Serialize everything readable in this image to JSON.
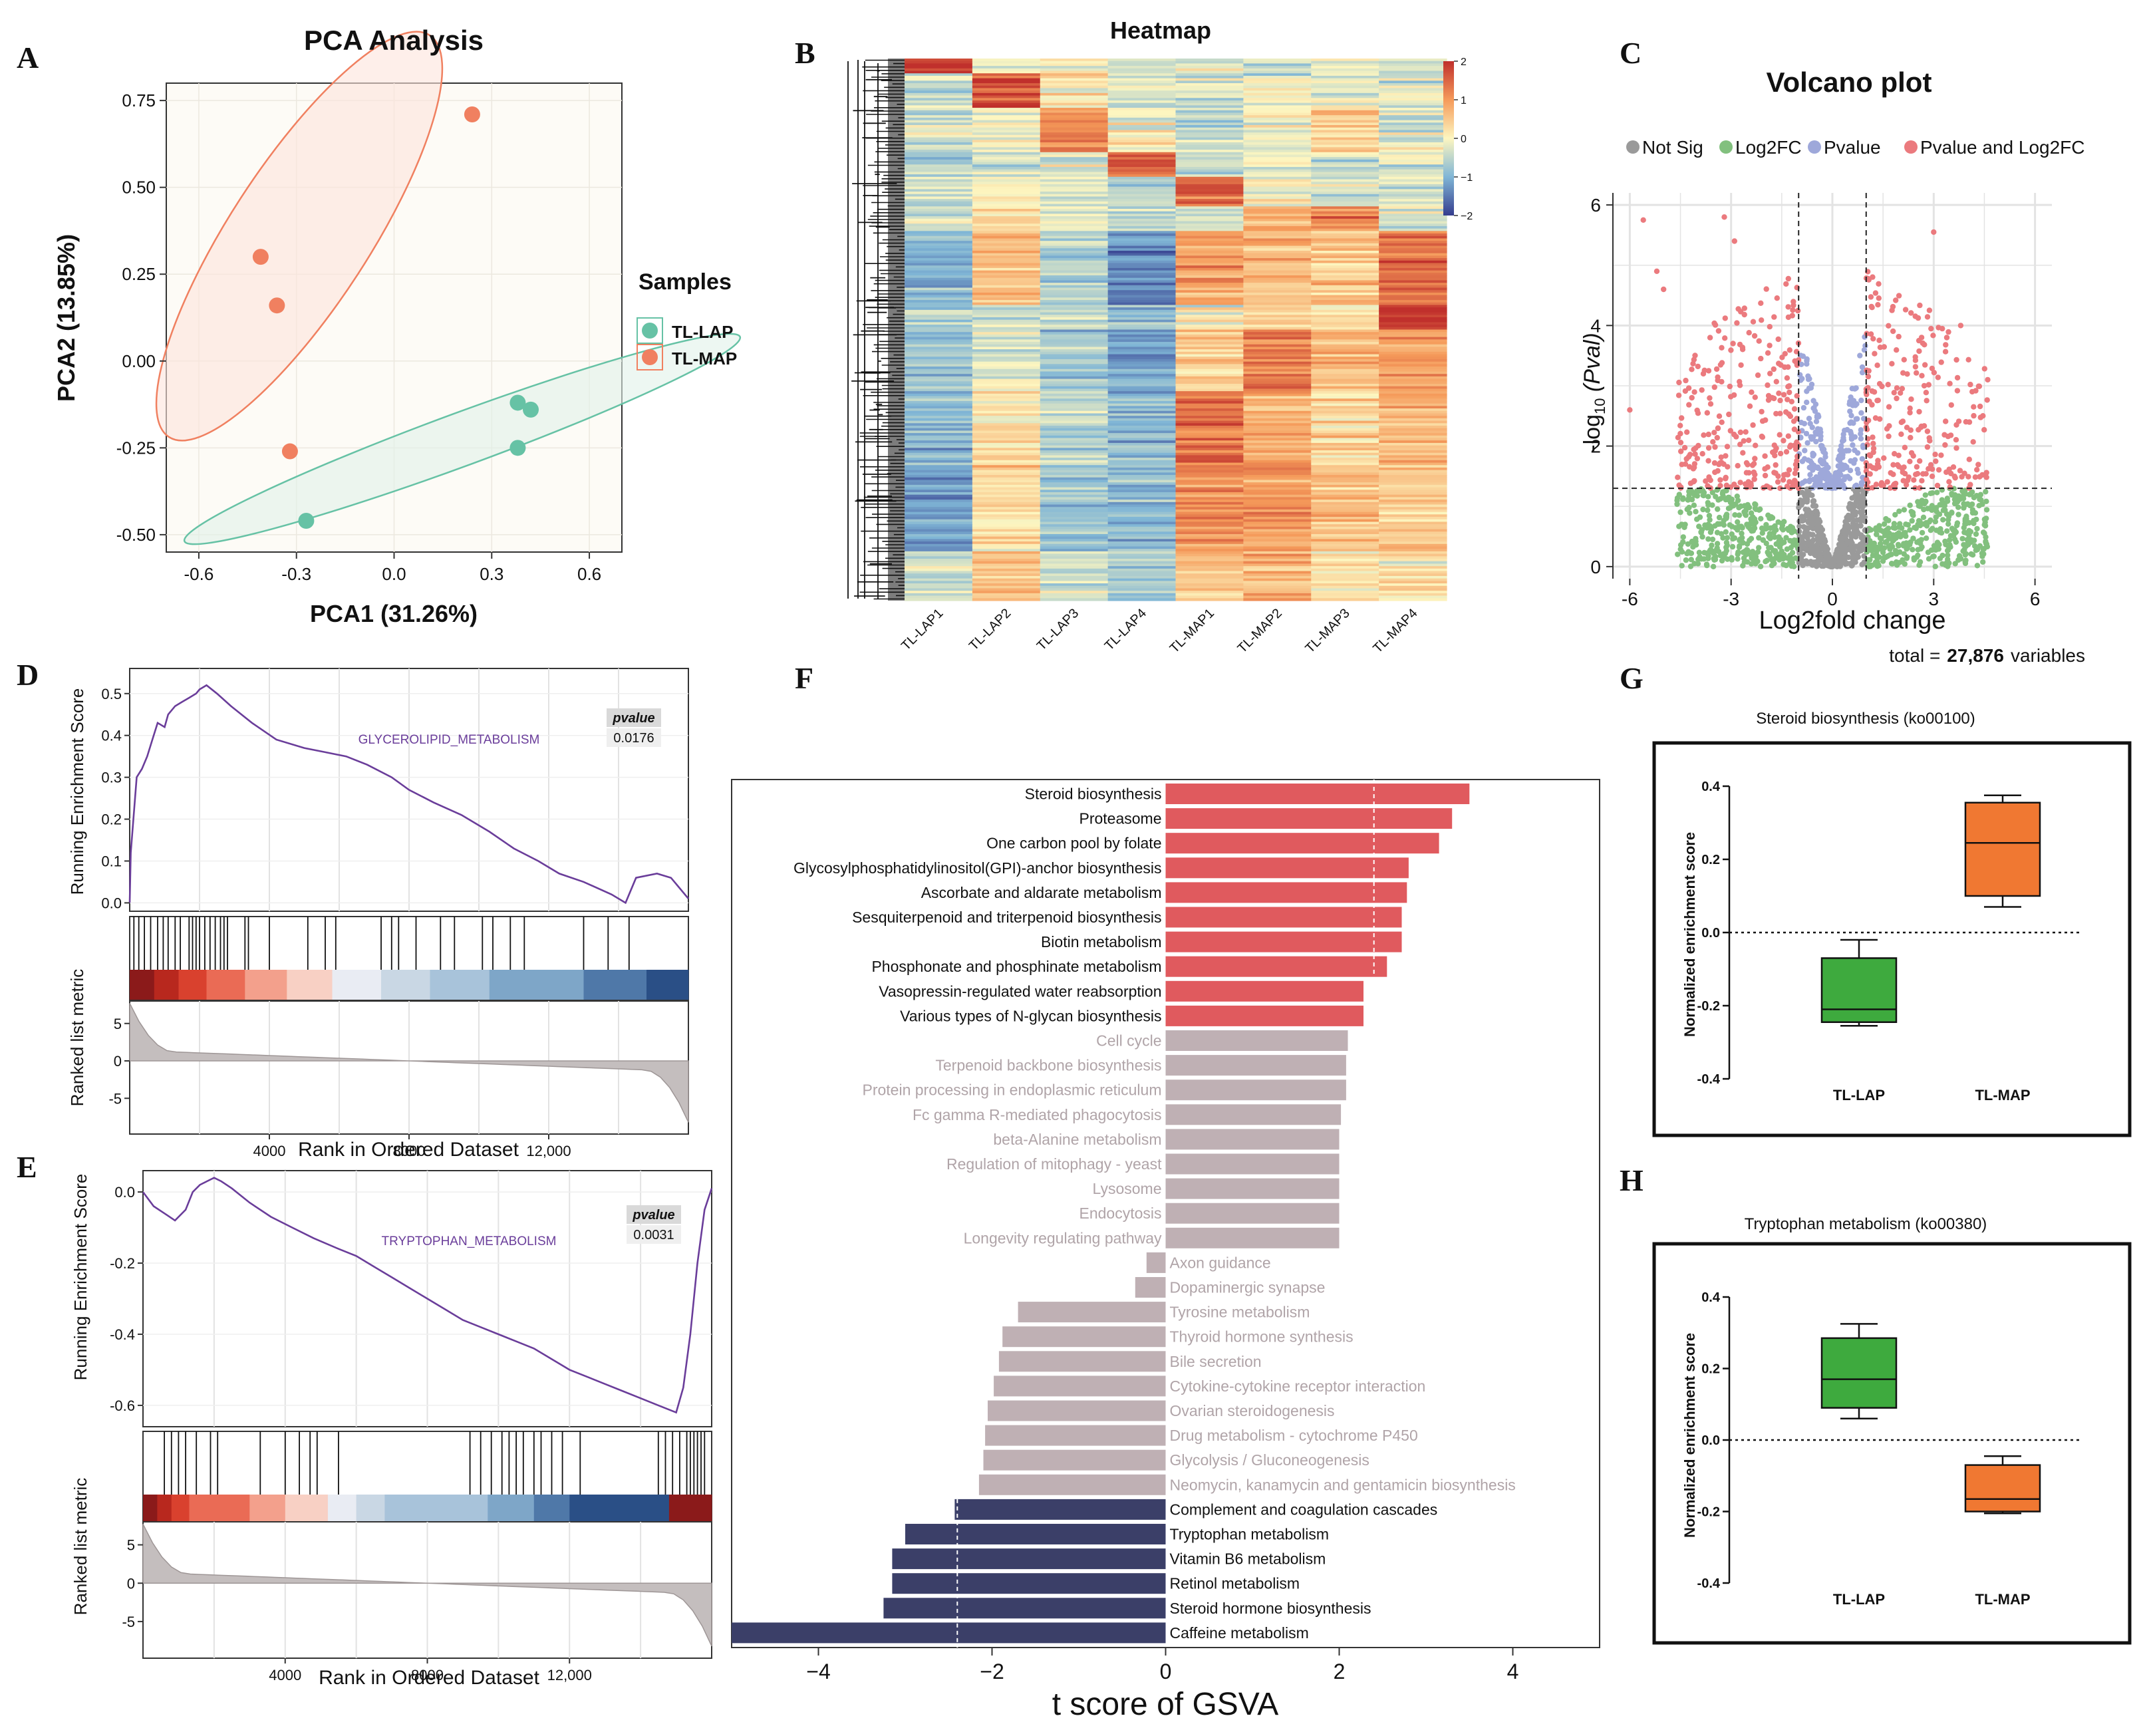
{
  "panel_labels": {
    "a": "A",
    "b": "B",
    "c": "C",
    "d": "D",
    "e": "E",
    "f": "F",
    "g": "G",
    "h": "H"
  },
  "colors": {
    "lap": "#66c2a5",
    "map": "#f08060",
    "up": "#e05a5e",
    "neutral": "#bfb0b4",
    "down": "#3b3f68",
    "box_lap": "#3eaa3e",
    "box_map": "#f07832",
    "gsea_line": "#6a3d9a",
    "notsig": "#9a9a9a",
    "log2fc": "#82c07e",
    "pvalue": "#9ea8da",
    "both": "#eb7a7e"
  },
  "chart_data": [
    {
      "id": "pca",
      "type": "scatter",
      "title": "PCA Analysis",
      "xlabel": "PCA1 (31.26%)",
      "ylabel": "PCA2 (13.85%)",
      "xlim": [
        -0.7,
        0.7
      ],
      "ylim": [
        -0.55,
        0.8
      ],
      "xticks": [
        -0.6,
        -0.3,
        0.0,
        0.3,
        0.6
      ],
      "xtick_labels": [
        "-0.6",
        "-0.3",
        "0.0",
        "0.3",
        "0.6"
      ],
      "yticks": [
        -0.5,
        -0.25,
        0.0,
        0.25,
        0.5,
        0.75
      ],
      "ytick_labels": [
        "-0.50",
        "-0.25",
        "0.00",
        "0.25",
        "0.50",
        "0.75"
      ],
      "legend_title": "Samples",
      "series": [
        {
          "name": "TL-LAP",
          "x": [
            -0.27,
            0.38,
            0.42,
            0.38
          ],
          "y": [
            -0.46,
            -0.12,
            -0.14,
            -0.25
          ]
        },
        {
          "name": "TL-MAP",
          "x": [
            0.24,
            -0.41,
            -0.36,
            -0.32
          ],
          "y": [
            0.71,
            0.3,
            0.16,
            -0.26
          ]
        }
      ]
    },
    {
      "id": "heatmap",
      "type": "heatmap",
      "title": "Heatmap",
      "columns": [
        "TL-LAP1",
        "TL-LAP2",
        "TL-LAP3",
        "TL-LAP4",
        "TL-MAP1",
        "TL-MAP2",
        "TL-MAP3",
        "TL-MAP4"
      ],
      "color_ticks": [
        2,
        1,
        0,
        -1,
        -2
      ],
      "color_tick_labels": [
        "2",
        "1",
        "0",
        "−1",
        "−2"
      ]
    },
    {
      "id": "volcano",
      "type": "scatter",
      "title": "Volcano plot",
      "xlabel": "Log2fold change",
      "ylabel_prefix": "-log",
      "ylabel_sub": "10",
      "ylabel_suffix": " (Pval)",
      "xlim": [
        -6.5,
        6.5
      ],
      "ylim": [
        -0.2,
        6.2
      ],
      "xticks": [
        -6,
        -3,
        0,
        3,
        6
      ],
      "xtick_labels": [
        "-6",
        "-3",
        "0",
        "3",
        "6"
      ],
      "yticks": [
        0,
        2,
        4,
        6
      ],
      "ytick_labels": [
        "0",
        "2",
        "4",
        "6"
      ],
      "fc_cutoff": 1,
      "p_cutoff": 1.3,
      "legend": [
        "Not Sig",
        "Log2FC",
        "Pvalue",
        "Pvalue and Log2FC"
      ],
      "total_prefix": "total =",
      "total_value": "27,876",
      "total_suffix": "variables"
    },
    {
      "id": "gsea_d",
      "type": "line",
      "title": "GLYCEROLIPID_METABOLISM",
      "ylabel": "Running Enrichment Score",
      "ylabel2": "Ranked list metric",
      "xlabel": "Rank in Ordered Dataset",
      "pvalue_label": "pvalue",
      "pvalue": "0.0176",
      "xlim": [
        0,
        16000
      ],
      "ylim": [
        -0.02,
        0.56
      ],
      "yticks": [
        0.0,
        0.1,
        0.2,
        0.3,
        0.4,
        0.5
      ],
      "ytick_labels": [
        "0.0",
        "0.1",
        "0.2",
        "0.3",
        "0.4",
        "0.5"
      ],
      "xticks": [
        4000,
        8000,
        12000
      ],
      "xtick_labels": [
        "4000",
        "8000",
        "12,000"
      ],
      "metric_ticks": [
        5,
        0,
        -5
      ],
      "metric_tick_labels": [
        "5",
        "0",
        "-5"
      ],
      "x": [
        0,
        30,
        200,
        350,
        500,
        650,
        800,
        1000,
        1100,
        1300,
        1500,
        1700,
        1900,
        2000,
        2200,
        2500,
        2900,
        3500,
        4200,
        5000,
        5600,
        6200,
        6800,
        7500,
        8000,
        8700,
        9500,
        10300,
        11000,
        11700,
        12300,
        13000,
        13800,
        14200,
        14500,
        15100,
        15500,
        16000
      ],
      "y": [
        0.0,
        0.12,
        0.3,
        0.32,
        0.35,
        0.39,
        0.43,
        0.42,
        0.45,
        0.47,
        0.48,
        0.49,
        0.5,
        0.51,
        0.52,
        0.5,
        0.47,
        0.43,
        0.39,
        0.37,
        0.36,
        0.35,
        0.33,
        0.3,
        0.27,
        0.24,
        0.21,
        0.17,
        0.13,
        0.1,
        0.07,
        0.05,
        0.02,
        0.0,
        0.06,
        0.07,
        0.06,
        0.01
      ]
    },
    {
      "id": "gsea_e",
      "type": "line",
      "title": "TRYPTOPHAN_METABOLISM",
      "ylabel": "Running Enrichment Score",
      "ylabel2": "Ranked list metric",
      "xlabel": "Rank in Ordered Dataset",
      "pvalue_label": "pvalue",
      "pvalue": "0.0031",
      "xlim": [
        0,
        16000
      ],
      "ylim": [
        -0.66,
        0.06
      ],
      "yticks": [
        0.0,
        -0.2,
        -0.4,
        -0.6
      ],
      "ytick_labels": [
        "0.0",
        "-0.2",
        "-0.4",
        "-0.6"
      ],
      "xticks": [
        4000,
        8000,
        12000
      ],
      "xtick_labels": [
        "4000",
        "8000",
        "12,000"
      ],
      "metric_ticks": [
        5,
        0,
        -5
      ],
      "metric_tick_labels": [
        "5",
        "0",
        "-5"
      ],
      "x": [
        0,
        300,
        600,
        900,
        1200,
        1400,
        1600,
        1800,
        2000,
        2200,
        2500,
        3000,
        3600,
        4200,
        4800,
        5500,
        6000,
        6500,
        7000,
        7500,
        8000,
        8500,
        9000,
        9500,
        10000,
        10500,
        11000,
        11500,
        12000,
        12500,
        13000,
        13500,
        14000,
        14500,
        15000,
        15200,
        15400,
        15600,
        15800,
        16000
      ],
      "y": [
        0.0,
        -0.04,
        -0.06,
        -0.08,
        -0.05,
        0.0,
        0.02,
        0.03,
        0.04,
        0.03,
        0.01,
        -0.03,
        -0.07,
        -0.1,
        -0.13,
        -0.16,
        -0.18,
        -0.21,
        -0.24,
        -0.27,
        -0.3,
        -0.33,
        -0.36,
        -0.38,
        -0.4,
        -0.42,
        -0.44,
        -0.47,
        -0.5,
        -0.52,
        -0.54,
        -0.56,
        -0.58,
        -0.6,
        -0.62,
        -0.55,
        -0.4,
        -0.2,
        -0.05,
        0.01
      ]
    },
    {
      "id": "gsva",
      "type": "bar",
      "orientation": "horizontal",
      "xlabel": "t score of GSVA",
      "xlim": [
        -5,
        5
      ],
      "xticks": [
        -4,
        -2,
        0,
        2,
        4
      ],
      "xtick_labels": [
        "−4",
        "−2",
        "0",
        "2",
        "4"
      ],
      "threshold": 2.4,
      "categories": [
        "Steroid biosynthesis",
        "Proteasome",
        "One carbon pool by folate",
        "Glycosylphosphatidylinositol(GPI)-anchor biosynthesis",
        "Ascorbate and aldarate metabolism",
        "Sesquiterpenoid and triterpenoid biosynthesis",
        "Biotin metabolism",
        "Phosphonate and phosphinate metabolism",
        "Vasopressin-regulated water reabsorption",
        "Various types of N-glycan biosynthesis",
        "Cell cycle",
        "Terpenoid backbone biosynthesis",
        "Protein processing in endoplasmic reticulum",
        "Fc gamma R-mediated phagocytosis",
        "beta-Alanine metabolism",
        "Regulation of mitophagy - yeast",
        "Lysosome",
        "Endocytosis",
        "Longevity regulating pathway",
        "Axon guidance",
        "Dopaminergic synapse",
        "Tyrosine metabolism",
        "Thyroid hormone synthesis",
        "Bile secretion",
        "Cytokine-cytokine receptor interaction",
        "Ovarian steroidogenesis",
        "Drug metabolism - cytochrome P450",
        "Glycolysis / Gluconeogenesis",
        "Neomycin, kanamycin and gentamicin biosynthesis",
        "Complement and coagulation cascades",
        "Tryptophan metabolism",
        "Vitamin B6 metabolism",
        "Retinol metabolism",
        "Steroid hormone biosynthesis",
        "Caffeine metabolism"
      ],
      "values": [
        3.5,
        3.3,
        3.15,
        2.8,
        2.78,
        2.72,
        2.72,
        2.55,
        2.28,
        2.28,
        2.1,
        2.08,
        2.08,
        2.02,
        2.0,
        2.0,
        2.0,
        2.0,
        2.0,
        -0.22,
        -0.35,
        -1.7,
        -1.88,
        -1.92,
        -1.98,
        -2.05,
        -2.08,
        -2.1,
        -2.15,
        -2.43,
        -3.0,
        -3.15,
        -3.15,
        -3.25,
        -5.0
      ],
      "groups": [
        "up",
        "up",
        "up",
        "up",
        "up",
        "up",
        "up",
        "up",
        "up",
        "up",
        "neutral",
        "neutral",
        "neutral",
        "neutral",
        "neutral",
        "neutral",
        "neutral",
        "neutral",
        "neutral",
        "neutral",
        "neutral",
        "neutral",
        "neutral",
        "neutral",
        "neutral",
        "neutral",
        "neutral",
        "neutral",
        "neutral",
        "down",
        "down",
        "down",
        "down",
        "down",
        "down"
      ]
    },
    {
      "id": "box_g",
      "type": "box",
      "title": "Steroid biosynthesis (ko00100)",
      "ylabel": "Normalized enrichment score",
      "categories": [
        "TL-LAP",
        "TL-MAP"
      ],
      "ylim": [
        -0.4,
        0.4
      ],
      "yticks": [
        0.4,
        0.2,
        0.0,
        -0.2,
        -0.4
      ],
      "ytick_labels": [
        "0.4",
        "0.2",
        "0.0",
        "-0.2",
        "-0.4"
      ],
      "boxes": [
        {
          "min": -0.255,
          "q1": -0.245,
          "median": -0.21,
          "q3": -0.07,
          "max": -0.02
        },
        {
          "min": 0.07,
          "q1": 0.1,
          "median": 0.245,
          "q3": 0.355,
          "max": 0.375
        }
      ]
    },
    {
      "id": "box_h",
      "type": "box",
      "title": "Tryptophan metabolism (ko00380)",
      "ylabel": "Normalized enrichment score",
      "categories": [
        "TL-LAP",
        "TL-MAP"
      ],
      "ylim": [
        -0.4,
        0.4
      ],
      "yticks": [
        0.4,
        0.2,
        0.0,
        -0.2,
        -0.4
      ],
      "ytick_labels": [
        "0.4",
        "0.2",
        "0.0",
        "-0.2",
        "-0.4"
      ],
      "boxes": [
        {
          "min": 0.06,
          "q1": 0.09,
          "median": 0.17,
          "q3": 0.285,
          "max": 0.325
        },
        {
          "min": -0.205,
          "q1": -0.2,
          "median": -0.165,
          "q3": -0.07,
          "max": -0.045
        }
      ]
    }
  ]
}
